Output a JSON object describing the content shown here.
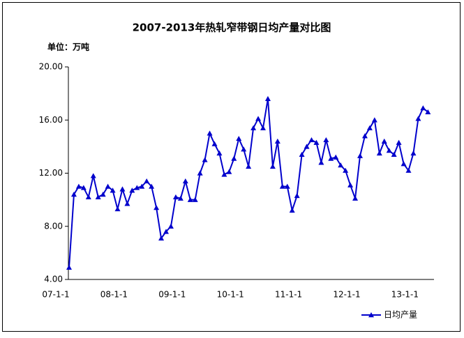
{
  "chart_data": {
    "type": "line",
    "title": "2007-2013年热轧窄带钢日均产量对比图",
    "unit_label": "单位：万吨",
    "categories": [
      "07-1-1",
      null,
      null,
      null,
      null,
      null,
      null,
      null,
      null,
      null,
      null,
      null,
      "08-1-1",
      null,
      null,
      null,
      null,
      null,
      null,
      null,
      null,
      null,
      null,
      null,
      "09-1-1",
      null,
      null,
      null,
      null,
      null,
      null,
      null,
      null,
      null,
      null,
      null,
      "10-1-1",
      null,
      null,
      null,
      null,
      null,
      null,
      null,
      null,
      null,
      null,
      null,
      "11-1-1",
      null,
      null,
      null,
      null,
      null,
      null,
      null,
      null,
      null,
      null,
      null,
      "12-1-1",
      null,
      null,
      null,
      null,
      null,
      null,
      null,
      null,
      null,
      null,
      null,
      "13-1-1",
      null,
      null
    ],
    "series": [
      {
        "name": "日均产量",
        "color": "#0000cc",
        "values": [
          4.9,
          10.4,
          11.0,
          10.9,
          10.2,
          11.8,
          10.2,
          10.4,
          11.0,
          10.7,
          9.3,
          10.8,
          9.7,
          10.7,
          10.9,
          11.0,
          11.4,
          11.0,
          9.4,
          7.1,
          7.6,
          8.0,
          10.2,
          10.1,
          11.4,
          10.0,
          10.0,
          12.0,
          13.0,
          15.0,
          14.2,
          13.5,
          11.9,
          12.1,
          13.1,
          14.6,
          13.8,
          12.5,
          15.4,
          16.1,
          15.4,
          17.6,
          12.5,
          14.4,
          11.0,
          11.0,
          9.2,
          10.3,
          13.4,
          14.0,
          14.5,
          14.3,
          12.8,
          14.5,
          13.1,
          13.2,
          12.6,
          12.2,
          11.1,
          10.1,
          13.3,
          14.8,
          15.4,
          16.0,
          13.5,
          14.4,
          13.7,
          13.4,
          14.3,
          12.7,
          12.2,
          13.5,
          16.1,
          16.9,
          16.6
        ]
      }
    ],
    "ylim": [
      4,
      20
    ],
    "yticks": [
      {
        "value": 4,
        "label": "4.00"
      },
      {
        "value": 8,
        "label": "8.00"
      },
      {
        "value": 12,
        "label": "12.00"
      },
      {
        "value": 16,
        "label": "16.00"
      },
      {
        "value": 20,
        "label": "20.00"
      }
    ],
    "grid": false,
    "legend": "bottom-right"
  }
}
